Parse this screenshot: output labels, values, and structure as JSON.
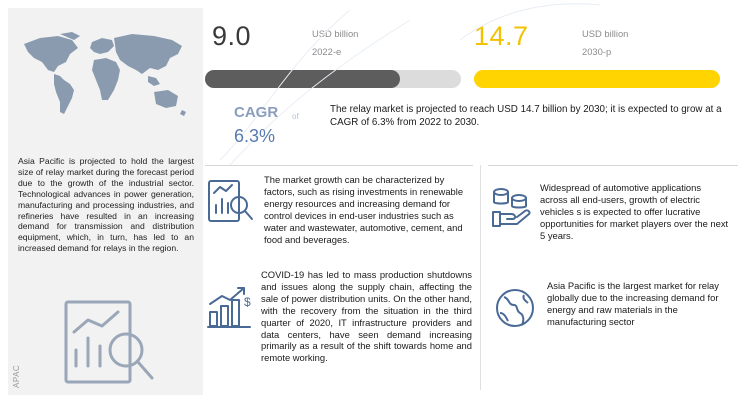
{
  "region": {
    "text": "Asia Pacific is projected to hold the largest size of relay market during the forecast period due to the growth of the industrial sector. Technological advances in power generation, manufacturing and processing industries, and refineries have resulted in an increasing demand for transmission and distribution equipment, which, in turn, has led to an increased demand for relays in the region.",
    "tag": "APAC"
  },
  "market": {
    "value_2022": "9.0",
    "unit_2022": "USD billion",
    "year_2022": "2022-e",
    "value_2030": "14.7",
    "unit_2030": "USD billion",
    "year_2030": "2030-p",
    "bar_2022_fraction": 0.76,
    "bar_2030_fraction": 1.0
  },
  "cagr": {
    "label": "CAGR",
    "of": "of",
    "value": "6.3%"
  },
  "summary": "The relay market is projected to reach USD 14.7 billion by 2030; it is expected to grow at a CAGR of 6.3% from 2022 to 2030.",
  "insights": [
    {
      "icon": "bar-chart-magnifier-icon",
      "text": "The market growth can be characterized by factors, such as rising investments in renewable energy resources and increasing demand for control devices in end-user industries such as water and wastewater, automotive, cement, and food and beverages."
    },
    {
      "icon": "growth-bar-chart-icon",
      "text": "COVID-19 has led to mass production shutdowns and issues along the supply chain, affecting the sale of power distribution units. On the other hand, with the recovery from the situation in the third quarter of 2020, IT infrastructure providers and data centers, have seen demand increasing primarily as a result of the shift towards home and remote working."
    },
    {
      "icon": "coins-hand-icon",
      "text": "Widespread of automotive applications across all end-users, growth of electric vehicles s is expected to offer lucrative opportunities for market players over the next 5 years."
    },
    {
      "icon": "globe-icon",
      "text": "Asia Pacific is the largest market for relay globally due to the increasing demand for energy and raw materials in the manufacturing sector"
    }
  ],
  "colors": {
    "accent_yellow": "#ffd400",
    "dark_bar": "#5d5d5d",
    "cagr_blue": "#5a7bb0",
    "panel_gray": "#f2f2f2"
  }
}
